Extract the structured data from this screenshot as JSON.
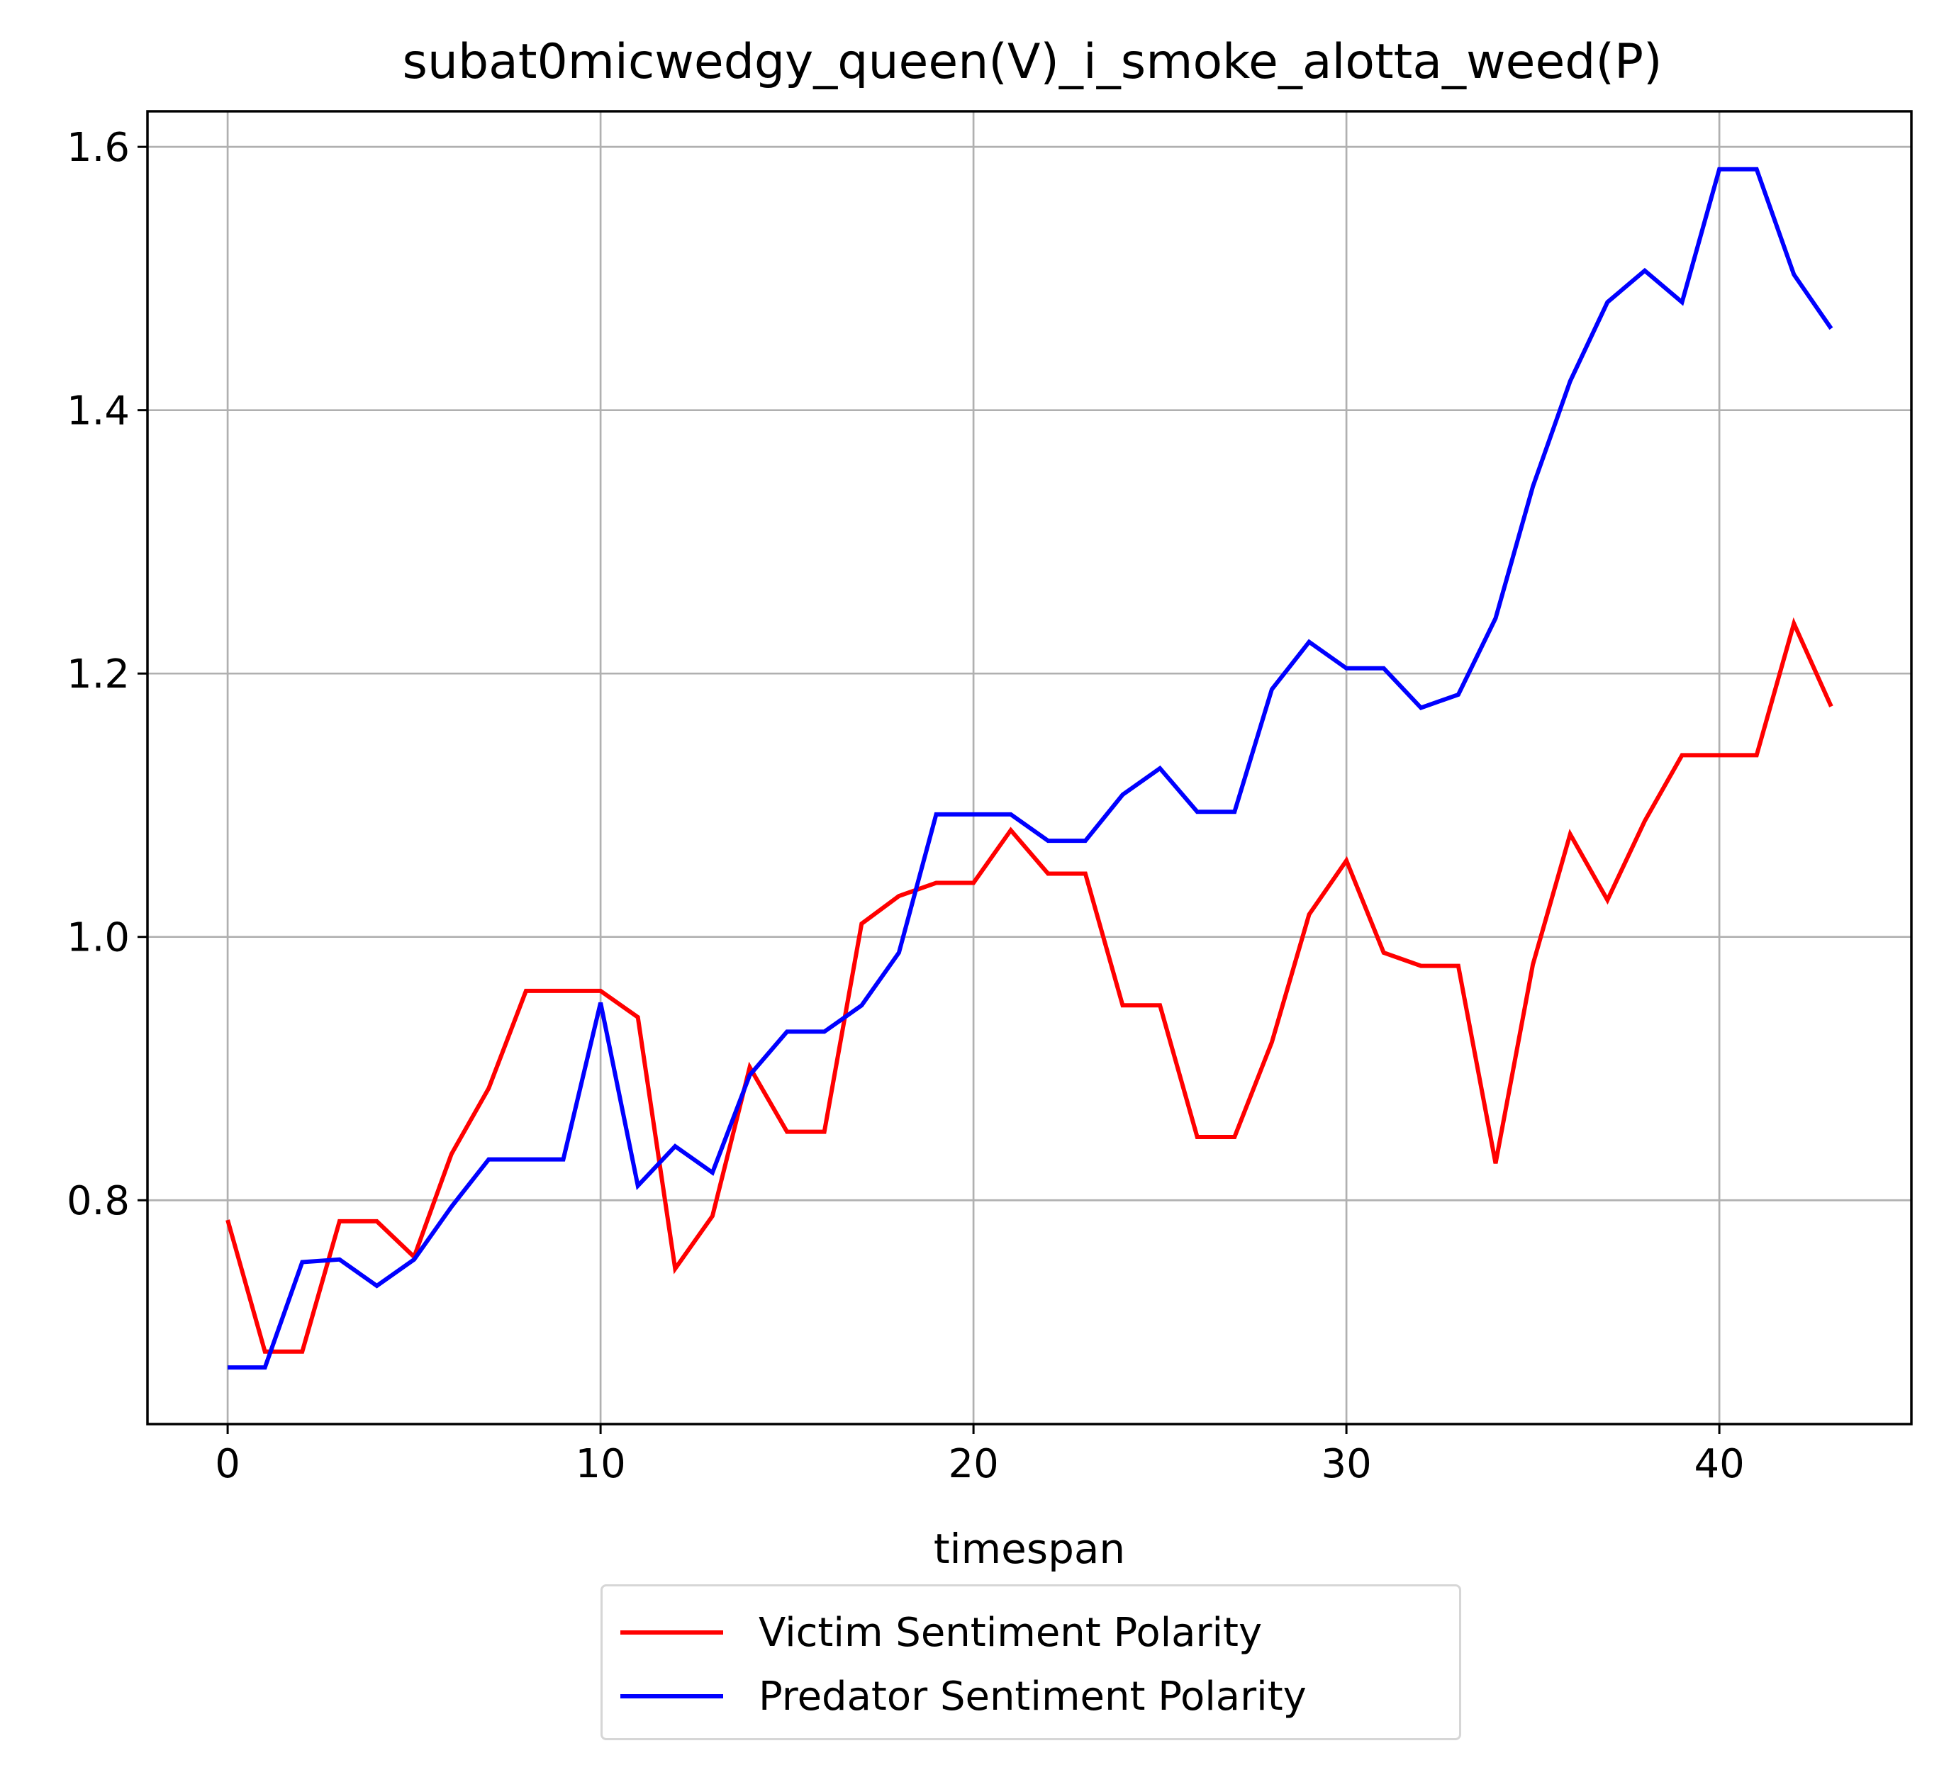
{
  "chart_data": {
    "type": "line",
    "title": "subat0micwedgy_queen(V)_i_smoke_alotta_weed(P)",
    "xlabel": "timespan",
    "ylabel": "",
    "xlim": [
      -2.15,
      45.15
    ],
    "ylim": [
      0.63,
      1.627
    ],
    "xticks": [
      0,
      10,
      20,
      30,
      40
    ],
    "xtick_labels": [
      "0",
      "10",
      "20",
      "30",
      "40"
    ],
    "yticks": [
      0.8,
      1.0,
      1.2,
      1.4,
      1.6
    ],
    "ytick_labels": [
      "0.8",
      "1.0",
      "1.2",
      "1.4",
      "1.6"
    ],
    "grid": true,
    "legend_position": "below plot, centered",
    "x": [
      0,
      1,
      2,
      3,
      4,
      5,
      6,
      7,
      8,
      9,
      10,
      11,
      12,
      13,
      14,
      15,
      16,
      17,
      18,
      19,
      20,
      21,
      22,
      23,
      24,
      25,
      26,
      27,
      28,
      29,
      30,
      31,
      32,
      33,
      34,
      35,
      36,
      37,
      38,
      39,
      40,
      41,
      42,
      43
    ],
    "series": [
      {
        "name": "Victim Sentiment Polarity",
        "color": "#ff0000",
        "values": [
          0.785,
          0.685,
          0.685,
          0.784,
          0.784,
          0.757,
          0.835,
          0.885,
          0.959,
          0.959,
          0.959,
          0.939,
          0.748,
          0.788,
          0.901,
          0.852,
          0.852,
          1.01,
          1.031,
          1.041,
          1.041,
          1.081,
          1.048,
          1.048,
          0.948,
          0.948,
          0.848,
          0.848,
          0.92,
          1.017,
          1.058,
          0.988,
          0.978,
          0.978,
          0.828,
          0.979,
          1.078,
          1.028,
          1.088,
          1.138,
          1.138,
          1.138,
          1.238,
          1.175
        ]
      },
      {
        "name": "Predator Sentiment Polarity",
        "color": "#0000ff",
        "values": [
          0.673,
          0.673,
          0.753,
          0.755,
          0.735,
          0.755,
          0.795,
          0.831,
          0.831,
          0.831,
          0.95,
          0.811,
          0.841,
          0.821,
          0.895,
          0.928,
          0.928,
          0.948,
          0.988,
          1.093,
          1.093,
          1.093,
          1.073,
          1.073,
          1.108,
          1.128,
          1.095,
          1.095,
          1.188,
          1.224,
          1.204,
          1.204,
          1.174,
          1.184,
          1.242,
          1.342,
          1.422,
          1.482,
          1.506,
          1.482,
          1.583,
          1.583,
          1.503,
          1.462
        ]
      }
    ]
  }
}
